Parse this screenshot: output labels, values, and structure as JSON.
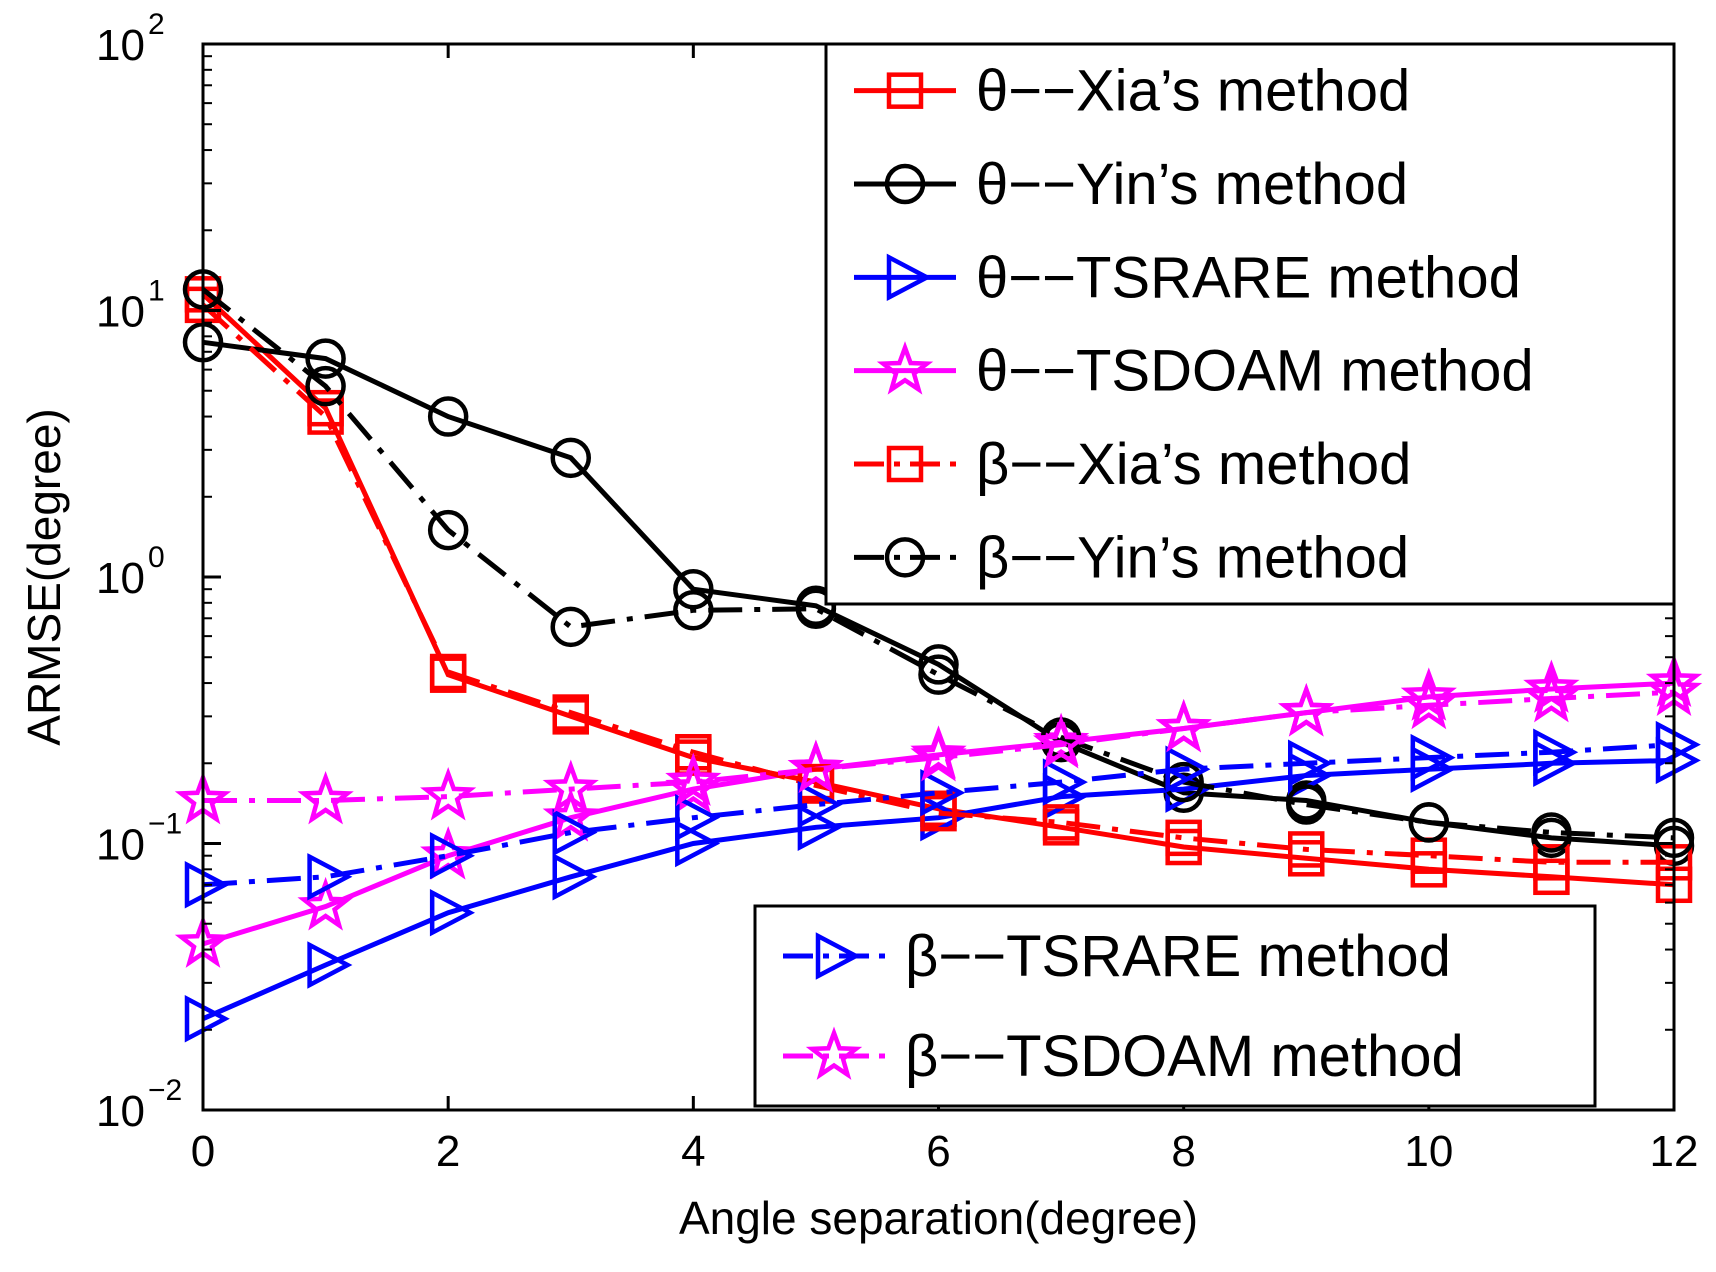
{
  "chart_data": {
    "type": "line",
    "title": "",
    "xlabel": "Angle separation(degree)",
    "ylabel": "ARMSE(degree)",
    "xlim": [
      0,
      12
    ],
    "ylim": [
      0.01,
      100
    ],
    "yscale": "log",
    "grid": false,
    "x_ticks": [
      "0",
      "2",
      "4",
      "6",
      "8",
      "10",
      "12"
    ],
    "y_ticks": [
      {
        "base": "10",
        "exp": "2"
      },
      {
        "base": "10",
        "exp": "1"
      },
      {
        "base": "10",
        "exp": "0"
      },
      {
        "base": "10",
        "exp": "−1"
      },
      {
        "base": "10",
        "exp": "−2"
      }
    ],
    "x": [
      0,
      1,
      2,
      3,
      4,
      5,
      6,
      7,
      8,
      9,
      10,
      11,
      12
    ],
    "series": [
      {
        "name": "θ−−Xia’s method",
        "color": "#ff0000",
        "line": "solid",
        "marker": "square",
        "values": [
          11.5,
          4.3,
          0.43,
          0.3,
          0.21,
          0.17,
          0.135,
          0.115,
          0.097,
          0.088,
          0.08,
          0.075,
          0.07
        ]
      },
      {
        "name": "θ−−Yin’s method",
        "color": "#000000",
        "line": "solid",
        "marker": "circle",
        "values": [
          7.6,
          6.6,
          4.0,
          2.8,
          0.9,
          0.78,
          0.47,
          0.24,
          0.155,
          0.145,
          0.12,
          0.105,
          0.098
        ]
      },
      {
        "name": "θ−−TSRARE method",
        "color": "#0000ff",
        "line": "solid",
        "marker": "triangle-right",
        "values": [
          0.022,
          0.035,
          0.055,
          0.075,
          0.1,
          0.115,
          0.125,
          0.15,
          0.16,
          0.18,
          0.19,
          0.2,
          0.205
        ]
      },
      {
        "name": "θ−−TSDOAM method",
        "color": "#ff00ff",
        "line": "solid",
        "marker": "star",
        "values": [
          0.042,
          0.058,
          0.09,
          0.125,
          0.16,
          0.19,
          0.215,
          0.24,
          0.27,
          0.31,
          0.355,
          0.38,
          0.4
        ]
      },
      {
        "name": "β−−Xia’s method",
        "color": "#ff0000",
        "line": "dashdot",
        "marker": "square",
        "values": [
          10.5,
          4.0,
          0.44,
          0.31,
          0.22,
          0.165,
          0.13,
          0.12,
          0.105,
          0.095,
          0.09,
          0.085,
          0.085
        ]
      },
      {
        "name": "β−−Yin’s method",
        "color": "#000000",
        "line": "dashdot",
        "marker": "circle",
        "values": [
          12.0,
          5.2,
          1.5,
          0.65,
          0.75,
          0.76,
          0.43,
          0.25,
          0.17,
          0.14,
          0.12,
          0.11,
          0.105
        ]
      },
      {
        "name": "β−−TSRARE method",
        "color": "#0000ff",
        "line": "dashdot",
        "marker": "triangle-right",
        "values": [
          0.07,
          0.075,
          0.09,
          0.11,
          0.125,
          0.14,
          0.155,
          0.17,
          0.19,
          0.2,
          0.21,
          0.22,
          0.235
        ]
      },
      {
        "name": "β−−TSDOAM method",
        "color": "#ff00ff",
        "line": "dashdot",
        "marker": "star",
        "values": [
          0.145,
          0.145,
          0.15,
          0.16,
          0.17,
          0.19,
          0.21,
          0.235,
          0.27,
          0.31,
          0.33,
          0.35,
          0.37
        ]
      }
    ],
    "legends": [
      {
        "placement": "top-right",
        "series": [
          0,
          1,
          2,
          3,
          4,
          5
        ]
      },
      {
        "placement": "bottom-right",
        "series": [
          6,
          7
        ]
      }
    ]
  }
}
